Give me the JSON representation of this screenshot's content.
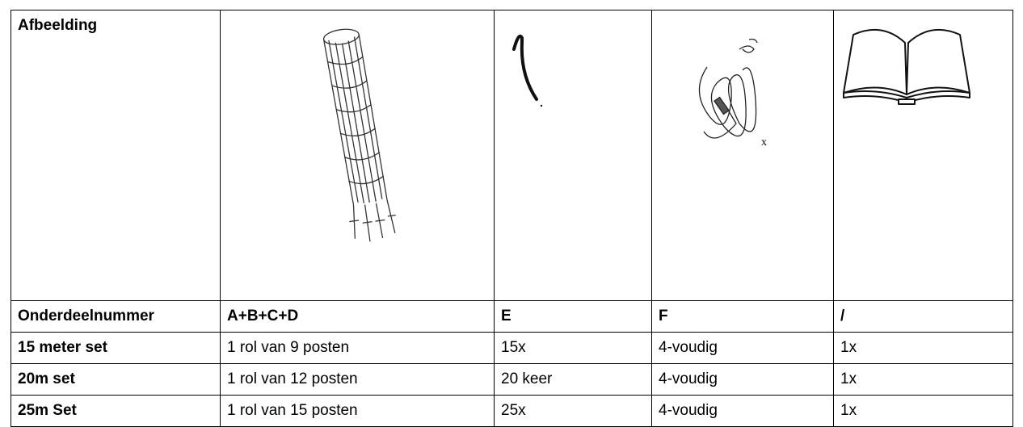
{
  "table": {
    "image_row": {
      "label": "Afbeelding",
      "cell_3_text": "x"
    },
    "rows": [
      [
        "Onderdeelnummer",
        "A+B+C+D",
        "E",
        "F",
        "/"
      ],
      [
        "15 meter set",
        "1 rol van 9 posten",
        "15x",
        "4-voudig",
        "1x"
      ],
      [
        "20m set",
        "1 rol van 12 posten",
        "20 keer",
        "4-voudig",
        "1x"
      ],
      [
        "25m Set",
        "1 rol van 15 posten",
        "25x",
        "4-voudig",
        "1x"
      ]
    ]
  }
}
